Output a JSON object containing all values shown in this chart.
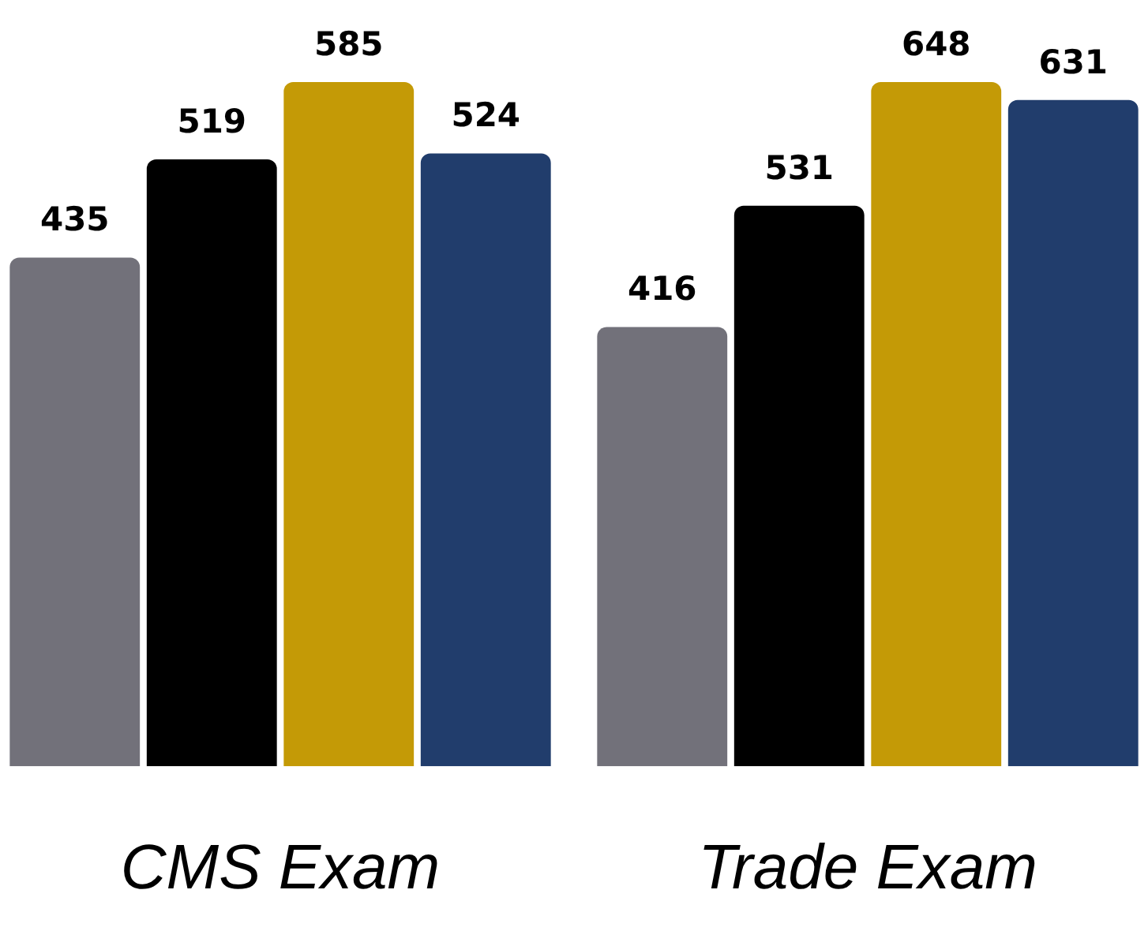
{
  "chart_data": [
    {
      "type": "bar",
      "xlabel": "CMS Exam",
      "categories": [
        null,
        null,
        null,
        null
      ],
      "values": [
        435,
        519,
        585,
        524
      ],
      "colors": [
        "#72717a",
        "#000000",
        "#c49a06",
        "#213d6c"
      ],
      "data_labels": true
    },
    {
      "type": "bar",
      "xlabel": "Trade Exam",
      "categories": [
        null,
        null,
        null,
        null
      ],
      "values": [
        416,
        531,
        648,
        631
      ],
      "colors": [
        "#72717a",
        "#000000",
        "#c49a06",
        "#213d6c"
      ],
      "data_labels": true
    }
  ]
}
